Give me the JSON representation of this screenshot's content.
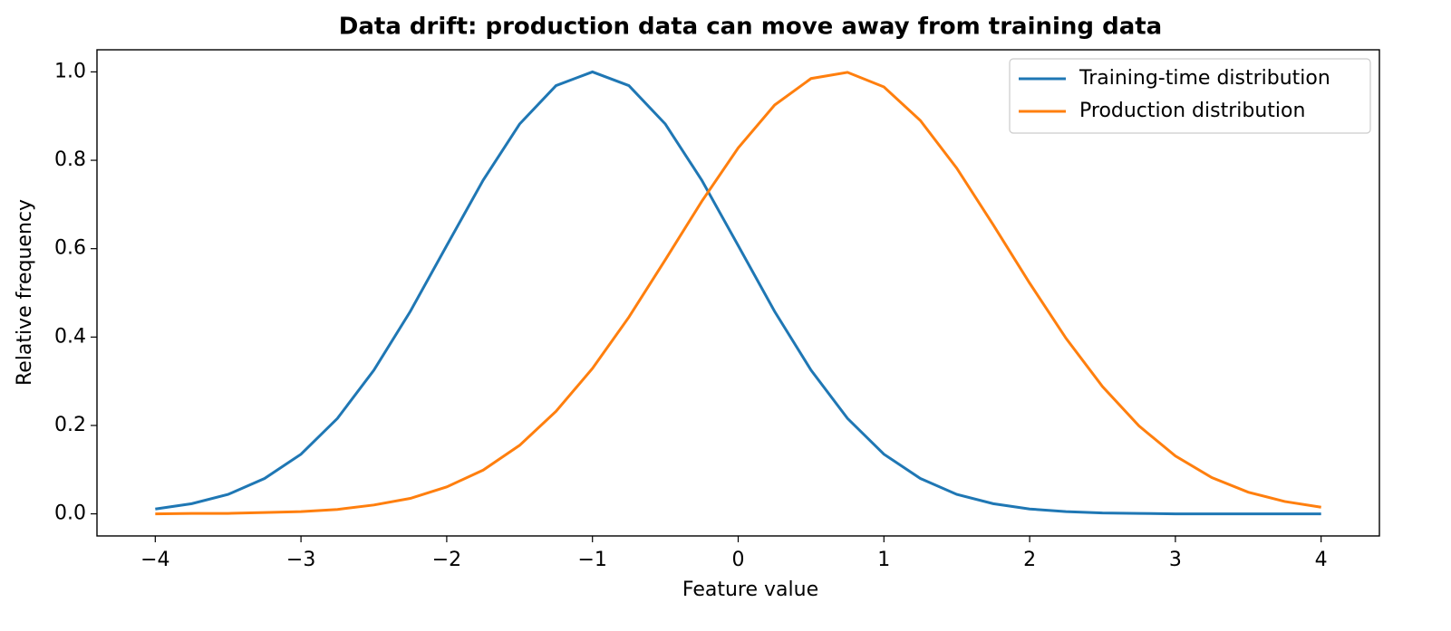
{
  "chart_data": {
    "type": "line",
    "title": "Data drift: production data can move away from training data",
    "x_label": "Feature value",
    "y_label": "Relative frequency",
    "x": [
      -4,
      -3.75,
      -3.5,
      -3.25,
      -3,
      -2.75,
      -2.5,
      -2.25,
      -2,
      -1.75,
      -1.5,
      -1.25,
      -1,
      -0.75,
      -0.5,
      -0.25,
      0,
      0.25,
      0.5,
      0.75,
      1,
      1.25,
      1.5,
      1.75,
      2,
      2.25,
      2.5,
      2.75,
      3,
      3.25,
      3.5,
      3.75,
      4
    ],
    "series": [
      {
        "name": "Training-time distribution",
        "color": "#1f77b4",
        "values": [
          0.011,
          0.023,
          0.044,
          0.08,
          0.135,
          0.216,
          0.325,
          0.458,
          0.607,
          0.755,
          0.882,
          0.969,
          1,
          0.969,
          0.882,
          0.755,
          0.607,
          0.458,
          0.325,
          0.216,
          0.135,
          0.08,
          0.044,
          0.023,
          0.011,
          0.005,
          0.002,
          0.001,
          0,
          0,
          0,
          0,
          0
        ]
      },
      {
        "name": "Production distribution",
        "color": "#ff7f0e",
        "values": [
          0,
          0.001,
          0.001,
          0.003,
          0.005,
          0.01,
          0.02,
          0.035,
          0.061,
          0.099,
          0.155,
          0.232,
          0.329,
          0.445,
          0.575,
          0.707,
          0.828,
          0.925,
          0.985,
          0.999,
          0.966,
          0.89,
          0.782,
          0.654,
          0.522,
          0.397,
          0.288,
          0.199,
          0.131,
          0.082,
          0.049,
          0.028,
          0.015
        ]
      }
    ],
    "xlim": [
      -4.4,
      4.4
    ],
    "ylim": [
      -0.05,
      1.05
    ],
    "xticks": [
      {
        "value": -4,
        "label": "−4"
      },
      {
        "value": -3,
        "label": "−3"
      },
      {
        "value": -2,
        "label": "−2"
      },
      {
        "value": -1,
        "label": "−1"
      },
      0,
      1,
      2,
      3,
      4
    ],
    "yticks": [
      {
        "value": 0,
        "label": "0.0"
      },
      {
        "value": 0.2,
        "label": "0.2"
      },
      {
        "value": 0.4,
        "label": "0.4"
      },
      {
        "value": 0.6,
        "label": "0.6"
      },
      {
        "value": 0.8,
        "label": "0.8"
      },
      {
        "value": 1,
        "label": "1.0"
      }
    ],
    "legend": "upper right",
    "grid": false
  }
}
